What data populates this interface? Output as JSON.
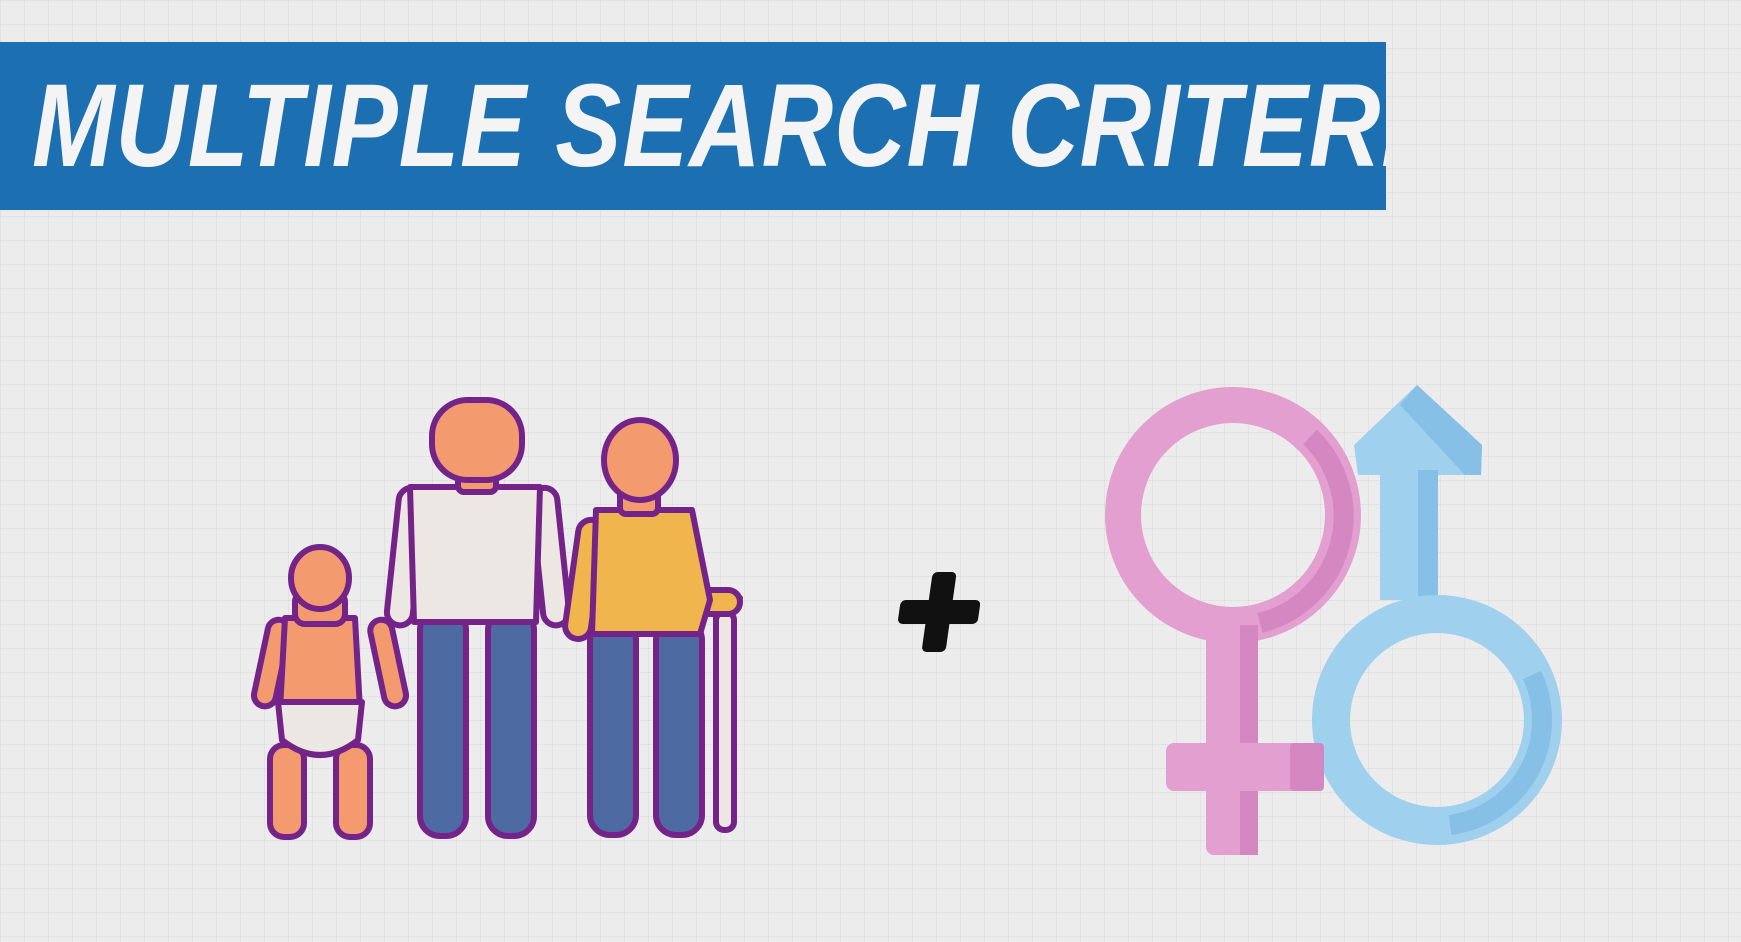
{
  "title": {
    "text": "MULTIPLE SEARCH CRITERIA?"
  },
  "icons": {
    "age_group": "age-group-icon",
    "plus": "plus-icon",
    "gender": "gender-symbols-icon"
  },
  "colors": {
    "banner": "#1c6fb0",
    "title_text": "#f4f4f4",
    "background": "#ececec",
    "outline_purple": "#742488",
    "skin": "#f39b6e",
    "pants": "#4e6aa3",
    "shirt_white": "#ece7e2",
    "shirt_yellow": "#f0b54c",
    "female_pink": "#e29fd0",
    "male_blue": "#9fd0ee"
  }
}
